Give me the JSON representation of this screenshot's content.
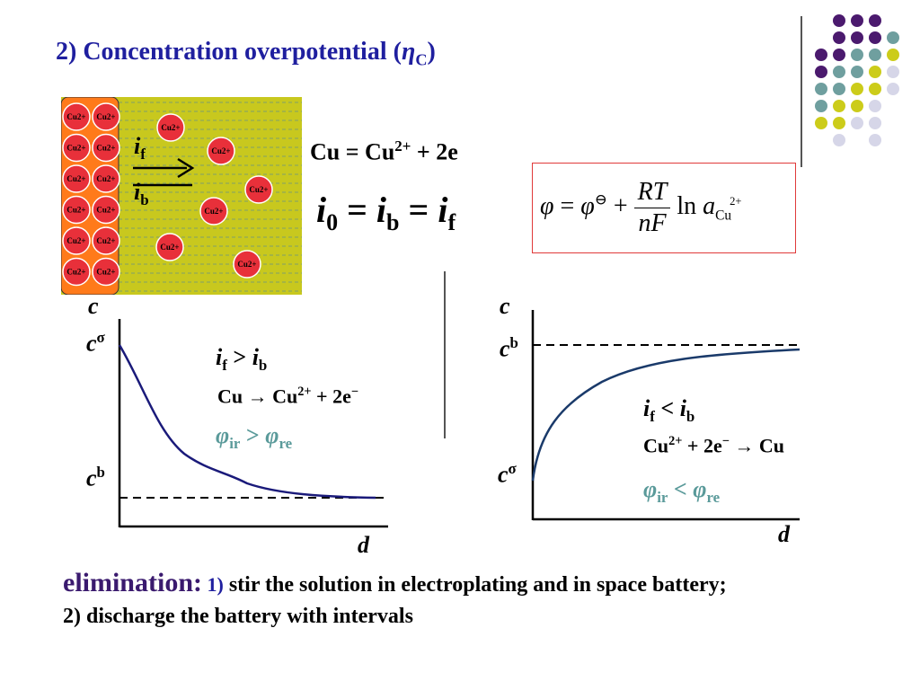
{
  "title": {
    "prefix": "2) Concentration overpotential (",
    "eta": "η",
    "sub": "C",
    "suffix": ")"
  },
  "cell": {
    "ion_label": "Cu",
    "ion_charge": "2+",
    "if_main": "i",
    "if_sub": "f",
    "ib_main": "i",
    "ib_sub": "b",
    "colors": {
      "electrode": "#ff7a1a",
      "solution": "#c8c81e",
      "ion": "#e8303a"
    }
  },
  "reaction": {
    "left": "Cu = Cu",
    "charge": "2+",
    "right": " + 2e"
  },
  "current_eq": {
    "i0": "i",
    "s0": "0",
    "eq1": " = ",
    "ib": "i",
    "sb": "b",
    "eq2": " = ",
    "if": "i",
    "sf": "f"
  },
  "nernst": {
    "phi": "φ",
    "eq": " = ",
    "phi2": "φ",
    "theta": "⊖",
    "plus": " + ",
    "num": "RT",
    "den": "nF",
    "ln": "ln",
    "a": "a",
    "sub": "Cu",
    "sup": "2+"
  },
  "left_graph": {
    "y_axis": "c",
    "x_axis": "d",
    "c_sigma": "c",
    "sigma": "σ",
    "c_b": "c",
    "b": "b",
    "cond_i1": "i",
    "cond_s1": "f",
    "cond_op": " > ",
    "cond_i2": "i",
    "cond_s2": "b",
    "rxn_a": "Cu ",
    "arrow": "→",
    "rxn_b": " Cu",
    "rxn_charge": "2+",
    "rxn_c": " + 2e",
    "rxn_e": "−",
    "phi1": "φ",
    "phi1_sub": "ir",
    "phi_op": " > ",
    "phi2": "φ",
    "phi2_sub": "re"
  },
  "right_graph": {
    "y_axis": "c",
    "x_axis": "d",
    "c_b": "c",
    "b": "b",
    "c_sigma": "c",
    "sigma": "σ",
    "cond_i1": "i",
    "cond_s1": "f",
    "cond_op": " < ",
    "cond_i2": "i",
    "cond_s2": "b",
    "rxn_a": "Cu",
    "rxn_charge": "2+",
    "rxn_b": " + 2e",
    "rxn_e": "−",
    "arrow": " → ",
    "rxn_c": "Cu",
    "phi1": "φ",
    "phi1_sub": "ir",
    "phi_op": " < ",
    "phi2": "φ",
    "phi2_sub": "re"
  },
  "elimination": {
    "keyword": "elimination:",
    "num1": " 1)",
    "item1": " stir the solution in electroplating and in space battery;",
    "item2": "2)  discharge the battery with intervals"
  },
  "decor_colors": {
    "purple": "#4b1a6e",
    "teal": "#6f9f9f",
    "yellow": "#cccc1a",
    "lavender": "#d6d6e8"
  }
}
